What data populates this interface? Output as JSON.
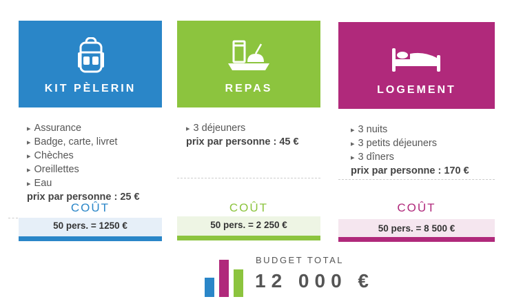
{
  "columns": [
    {
      "title": "KIT PÈLERIN",
      "icon": "backpack-icon",
      "color": "#2a86c8",
      "items": [
        "Assurance",
        "Badge, carte,  livret",
        "Chèches",
        "Oreillettes",
        "Eau"
      ],
      "price": "prix par personne : 25 €",
      "cout_label": "COÛT",
      "cost": "50 pers. = 1250 €",
      "cost_bg": "#e6eff8"
    },
    {
      "title": "REPAS",
      "icon": "meal-tray-icon",
      "color": "#8cc43e",
      "items": [
        "3 déjeuners"
      ],
      "price": "prix par personne : 45 €",
      "cout_label": "COÛT",
      "cost": "50 pers. = 2 250 €",
      "cost_bg": "#eef5e4"
    },
    {
      "title": "LOGEMENT",
      "icon": "bed-icon",
      "color": "#b0297b",
      "items": [
        "3 nuits",
        "3 petits déjeuners",
        "3 dîners"
      ],
      "price": "prix par personne : 170 €",
      "cout_label": "COÛT",
      "cost": "50 pers. = 8 500 €",
      "cost_bg": "#f5e6ef"
    }
  ],
  "budget": {
    "label": "BUDGET TOTAL",
    "amount": "12 000 €",
    "icon": "bar-chart-icon"
  }
}
